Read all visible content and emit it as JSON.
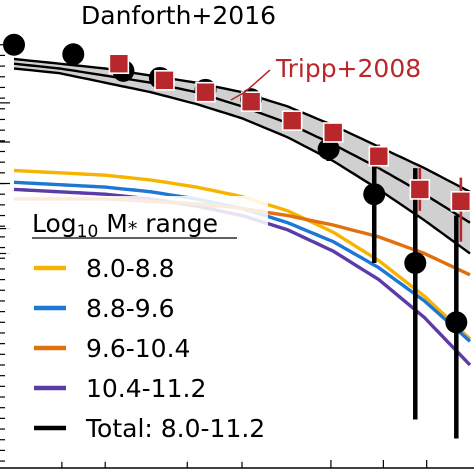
{
  "chart_data": {
    "type": "line",
    "title": "",
    "xlabel": "",
    "ylabel": "",
    "grid": false,
    "legend_title": "Log10 M* range",
    "legend_title_parts": {
      "log": "Log",
      "sub": "10",
      "m": " M",
      "star": "*",
      "rest": " range"
    },
    "legend_placement": "bottom-left",
    "series": [
      {
        "name": "8.0-8.8",
        "color": "#f6b400",
        "x": [
          0.0,
          0.1,
          0.2,
          0.3,
          0.4,
          0.5,
          0.6,
          0.7,
          0.8,
          0.9,
          1.0
        ],
        "y": [
          0.45,
          0.44,
          0.43,
          0.41,
          0.38,
          0.34,
          0.28,
          0.19,
          0.07,
          -0.08,
          -0.26
        ]
      },
      {
        "name": "8.8-9.6",
        "color": "#1e77d4",
        "x": [
          0.0,
          0.1,
          0.2,
          0.3,
          0.4,
          0.5,
          0.6,
          0.7,
          0.8,
          0.9,
          1.0
        ],
        "y": [
          0.4,
          0.39,
          0.38,
          0.36,
          0.33,
          0.29,
          0.23,
          0.15,
          0.04,
          -0.1,
          -0.27
        ]
      },
      {
        "name": "9.6-10.4",
        "color": "#e07010",
        "x": [
          0.0,
          0.1,
          0.2,
          0.3,
          0.4,
          0.5,
          0.6,
          0.7,
          0.8,
          0.9,
          1.0
        ],
        "y": [
          0.33,
          0.33,
          0.33,
          0.32,
          0.31,
          0.29,
          0.26,
          0.22,
          0.17,
          0.1,
          0.01
        ]
      },
      {
        "name": "10.4-11.2",
        "color": "#5c3aa8",
        "x": [
          0.0,
          0.1,
          0.2,
          0.3,
          0.4,
          0.5,
          0.6,
          0.7,
          0.8,
          0.9,
          1.0
        ],
        "y": [
          0.37,
          0.36,
          0.35,
          0.33,
          0.3,
          0.26,
          0.2,
          0.11,
          -0.01,
          -0.17,
          -0.37
        ]
      },
      {
        "name": "Total: 8.0-11.2",
        "color": "#000000",
        "x": [
          0.0,
          0.1,
          0.2,
          0.3,
          0.4,
          0.5,
          0.6,
          0.7,
          0.8,
          0.9,
          1.0
        ],
        "y": [
          0.9,
          0.88,
          0.85,
          0.82,
          0.78,
          0.72,
          0.65,
          0.56,
          0.46,
          0.35,
          0.23
        ],
        "band": {
          "lower": [
            0.88,
            0.86,
            0.82,
            0.78,
            0.73,
            0.67,
            0.59,
            0.49,
            0.37,
            0.24,
            0.1
          ],
          "upper": [
            0.92,
            0.9,
            0.88,
            0.85,
            0.82,
            0.78,
            0.72,
            0.64,
            0.55,
            0.46,
            0.36
          ]
        }
      }
    ],
    "observations": [
      {
        "name": "Danforth+2016",
        "marker": "circle",
        "color": "#000000",
        "points": [
          {
            "x": 0.0,
            "y": 0.98
          },
          {
            "x": 0.13,
            "y": 0.94
          },
          {
            "x": 0.24,
            "y": 0.87
          },
          {
            "x": 0.32,
            "y": 0.84
          },
          {
            "x": 0.42,
            "y": 0.79
          },
          {
            "x": 0.52,
            "y": 0.75
          },
          {
            "x": 0.69,
            "y": 0.54,
            "err_lo": 0.05,
            "err_hi": 0.05
          },
          {
            "x": 0.79,
            "y": 0.35,
            "err_lo": 0.29,
            "err_hi": 0.13
          },
          {
            "x": 0.88,
            "y": 0.06,
            "err_lo": 0.66,
            "err_hi": 0.4
          },
          {
            "x": 0.97,
            "y": -0.19,
            "err_lo": 0.49,
            "err_hi": 0.45
          }
        ]
      },
      {
        "name": "Tripp+2008",
        "marker": "square",
        "color": "#b8272c",
        "points": [
          {
            "x": 0.23,
            "y": 0.9
          },
          {
            "x": 0.33,
            "y": 0.83
          },
          {
            "x": 0.42,
            "y": 0.78
          },
          {
            "x": 0.52,
            "y": 0.74
          },
          {
            "x": 0.61,
            "y": 0.66
          },
          {
            "x": 0.7,
            "y": 0.61
          },
          {
            "x": 0.8,
            "y": 0.51,
            "err_lo": 0.05,
            "err_hi": 0.05
          },
          {
            "x": 0.89,
            "y": 0.37,
            "err_lo": 0.09,
            "err_hi": 0.09
          },
          {
            "x": 0.98,
            "y": 0.32,
            "err_lo": 0.17,
            "err_hi": 0.1
          }
        ]
      }
    ],
    "annotations": [
      {
        "text": "Danforth+2016",
        "color": "#000000"
      },
      {
        "text": "Tripp+2008",
        "color": "#b8272c"
      }
    ]
  }
}
